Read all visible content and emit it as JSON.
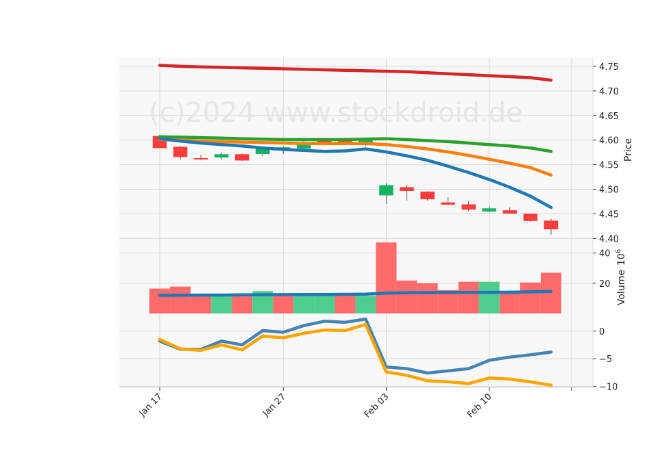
{
  "chart_data": [
    {
      "type": "candlestick",
      "panel": "price",
      "ylabel": "Price",
      "ylim": [
        4.395,
        4.768
      ],
      "yticks": [
        4.4,
        4.45,
        4.5,
        4.55,
        4.6,
        4.65,
        4.7,
        4.75
      ],
      "ytick_labels": [
        "4.40",
        "4.45",
        "4.50",
        "4.55",
        "4.60",
        "4.65",
        "4.70",
        "4.75"
      ],
      "grid": true,
      "watermark": "(c)2024 www.stockdroid.de",
      "x": [
        "Jan 17",
        "Jan 20",
        "Jan 21",
        "Jan 22",
        "Jan 23",
        "Jan 24",
        "Jan 27",
        "Jan 28",
        "Jan 29",
        "Jan 30",
        "Jan 31",
        "Feb 03",
        "Feb 04",
        "Feb 05",
        "Feb 06",
        "Feb 07",
        "Feb 10",
        "Feb 11",
        "Feb 12",
        "Feb 13"
      ],
      "candles": [
        {
          "open": 4.608,
          "high": 4.61,
          "low": 4.583,
          "close": 4.584
        },
        {
          "open": 4.586,
          "high": 4.588,
          "low": 4.561,
          "close": 4.566
        },
        {
          "open": 4.563,
          "high": 4.57,
          "low": 4.559,
          "close": 4.561
        },
        {
          "open": 4.565,
          "high": 4.574,
          "low": 4.56,
          "close": 4.571
        },
        {
          "open": 4.571,
          "high": 4.573,
          "low": 4.558,
          "close": 4.559
        },
        {
          "open": 4.572,
          "high": 4.584,
          "low": 4.568,
          "close": 4.583
        },
        {
          "open": 4.584,
          "high": 4.588,
          "low": 4.572,
          "close": 4.585
        },
        {
          "open": 4.583,
          "high": 4.598,
          "low": 4.582,
          "close": 4.59
        },
        {
          "open": 4.598,
          "high": 4.603,
          "low": 4.59,
          "close": 4.591
        },
        {
          "open": 4.598,
          "high": 4.605,
          "low": 4.592,
          "close": 4.596
        },
        {
          "open": 4.59,
          "high": 4.605,
          "low": 4.588,
          "close": 4.602
        },
        {
          "open": 4.488,
          "high": 4.513,
          "low": 4.47,
          "close": 4.508
        },
        {
          "open": 4.504,
          "high": 4.509,
          "low": 4.477,
          "close": 4.497
        },
        {
          "open": 4.495,
          "high": 4.496,
          "low": 4.477,
          "close": 4.48
        },
        {
          "open": 4.473,
          "high": 4.484,
          "low": 4.468,
          "close": 4.469
        },
        {
          "open": 4.469,
          "high": 4.477,
          "low": 4.456,
          "close": 4.459
        },
        {
          "open": 4.455,
          "high": 4.466,
          "low": 4.453,
          "close": 4.461
        },
        {
          "open": 4.457,
          "high": 4.463,
          "low": 4.45,
          "close": 4.451
        },
        {
          "open": 4.45,
          "high": 4.451,
          "low": 4.434,
          "close": 4.436
        },
        {
          "open": 4.436,
          "high": 4.44,
          "low": 4.408,
          "close": 4.419
        }
      ],
      "series": [
        {
          "color": "#d62728",
          "values": [
            4.752,
            4.75,
            4.749,
            4.748,
            4.747,
            4.746,
            4.745,
            4.744,
            4.743,
            4.742,
            4.741,
            4.74,
            4.739,
            4.737,
            4.735,
            4.733,
            4.731,
            4.729,
            4.727,
            4.722
          ]
        },
        {
          "color": "#2ca02c",
          "values": [
            4.607,
            4.606,
            4.605,
            4.604,
            4.603,
            4.602,
            4.601,
            4.601,
            4.601,
            4.601,
            4.602,
            4.603,
            4.601,
            4.599,
            4.597,
            4.594,
            4.591,
            4.588,
            4.584,
            4.577
          ]
        },
        {
          "color": "#ff7f0e",
          "values": [
            4.601,
            4.6,
            4.598,
            4.597,
            4.596,
            4.595,
            4.594,
            4.593,
            4.593,
            4.593,
            4.593,
            4.591,
            4.587,
            4.582,
            4.576,
            4.569,
            4.561,
            4.553,
            4.544,
            4.529
          ]
        },
        {
          "color": "#1f77b4",
          "values": [
            4.603,
            4.598,
            4.594,
            4.591,
            4.588,
            4.584,
            4.581,
            4.579,
            4.577,
            4.578,
            4.582,
            4.576,
            4.568,
            4.559,
            4.547,
            4.534,
            4.52,
            4.504,
            4.486,
            4.463
          ]
        }
      ],
      "up_color": "#14b364",
      "down_color": "#ff3c3c"
    },
    {
      "type": "bar",
      "panel": "volume",
      "ylabel": "Volume",
      "ylabel_exponent": "10",
      "ylabel_exponent_power": "6",
      "ylim": [
        0,
        48
      ],
      "yticks": [
        20,
        40
      ],
      "ytick_labels": [
        "20",
        "40"
      ],
      "values": [
        16.5,
        17.8,
        11.5,
        12.0,
        11.8,
        14.8,
        11.7,
        11.6,
        11.8,
        11.9,
        11.7,
        47.0,
        21.8,
        20.0,
        15.5,
        21.0,
        21.0,
        13.5,
        20.5,
        27.0
      ],
      "bar_colors": [
        "down",
        "down",
        "down",
        "up",
        "down",
        "up",
        "down",
        "up",
        "up",
        "down",
        "up",
        "down",
        "down",
        "down",
        "down",
        "down",
        "up",
        "down",
        "down",
        "down"
      ],
      "series": [
        {
          "color": "#1f77b4",
          "values": [
            12.0,
            12.1,
            12.2,
            12.2,
            12.3,
            12.4,
            12.5,
            12.6,
            12.6,
            12.7,
            12.8,
            13.5,
            13.7,
            13.8,
            13.9,
            13.9,
            14.0,
            14.1,
            14.3,
            14.6
          ]
        }
      ]
    },
    {
      "type": "line",
      "panel": "oscillator",
      "ylim": [
        -10.2,
        3.2
      ],
      "yticks": [
        0,
        -5,
        -10
      ],
      "ytick_labels": [
        "0",
        "−5",
        "−10"
      ],
      "series": [
        {
          "color": "#4682b4",
          "values": [
            -1.8,
            -3.3,
            -3.3,
            -1.8,
            -2.5,
            0.1,
            -0.2,
            1.0,
            1.8,
            1.6,
            2.2,
            -6.5,
            -6.8,
            -7.6,
            -7.2,
            -6.8,
            -5.3,
            -4.7,
            -4.3,
            -3.8
          ]
        },
        {
          "color": "#ffa500",
          "values": [
            -1.5,
            -3.2,
            -3.5,
            -2.5,
            -3.4,
            -0.9,
            -1.2,
            -0.4,
            0.2,
            0.1,
            1.2,
            -7.4,
            -8.0,
            -9.0,
            -9.2,
            -9.5,
            -8.5,
            -8.7,
            -9.2,
            -9.8
          ]
        }
      ]
    }
  ],
  "x_tick_labels": [
    "Jan 17",
    "Jan 27",
    "Feb 03",
    "Feb 10"
  ],
  "x_tick_index": [
    0,
    6,
    11,
    16
  ],
  "x_extra_tick_index": 20
}
